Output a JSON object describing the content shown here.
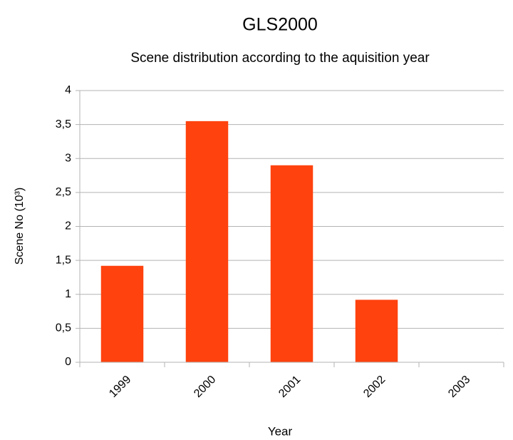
{
  "chart_data": {
    "type": "bar",
    "title": "GLS2000",
    "subtitle": "Scene distribution according to the aquisition year",
    "x_label": "Year",
    "y_label": "Scene No (10³)",
    "categories": [
      "1999",
      "2000",
      "2001",
      "2002",
      "2003"
    ],
    "values": [
      1.42,
      3.55,
      2.9,
      0.92,
      0
    ],
    "color": "#ff420e",
    "ylim": [
      0,
      4
    ],
    "yticks": [
      0,
      {
        "value": 0.5,
        "label": "0,5"
      },
      1,
      {
        "value": 1.5,
        "label": "1,5"
      },
      2,
      {
        "value": 2.5,
        "label": "2,5"
      },
      3,
      {
        "value": 3.5,
        "label": "3,5"
      },
      4
    ],
    "grid": true
  }
}
